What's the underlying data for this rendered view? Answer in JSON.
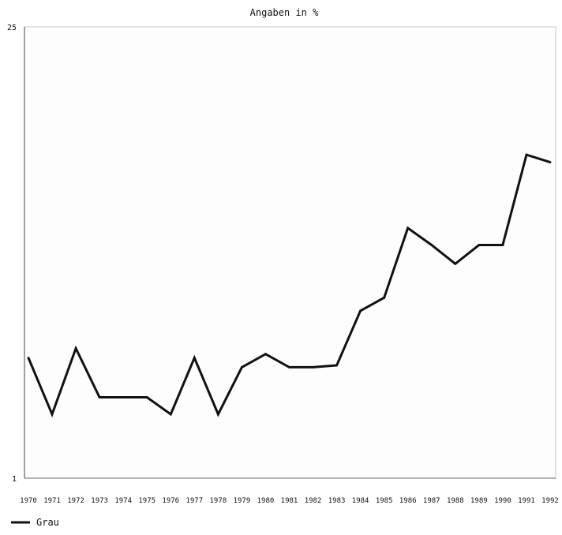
{
  "chart_data": {
    "type": "line",
    "title": "Angaben in %",
    "categories": [
      "1970",
      "1971",
      "1972",
      "1973",
      "1974",
      "1975",
      "1976",
      "1977",
      "1978",
      "1979",
      "1980",
      "1981",
      "1982",
      "1983",
      "1984",
      "1985",
      "1986",
      "1987",
      "1988",
      "1989",
      "1990",
      "1991",
      "1992"
    ],
    "series": [
      {
        "name": "Grau",
        "color": "#111111",
        "values": [
          7.4,
          4.4,
          7.9,
          5.3,
          5.3,
          5.3,
          4.4,
          7.4,
          4.4,
          6.9,
          7.6,
          6.9,
          6.9,
          7.0,
          9.9,
          10.6,
          14.3,
          13.4,
          12.4,
          13.4,
          13.4,
          18.2,
          17.8
        ]
      }
    ],
    "y_tick_labels": [
      "1",
      "25"
    ],
    "ylim": [
      1,
      25
    ],
    "xlabel": "",
    "ylabel": "",
    "grid": false,
    "legend_position": "bottom-left"
  }
}
